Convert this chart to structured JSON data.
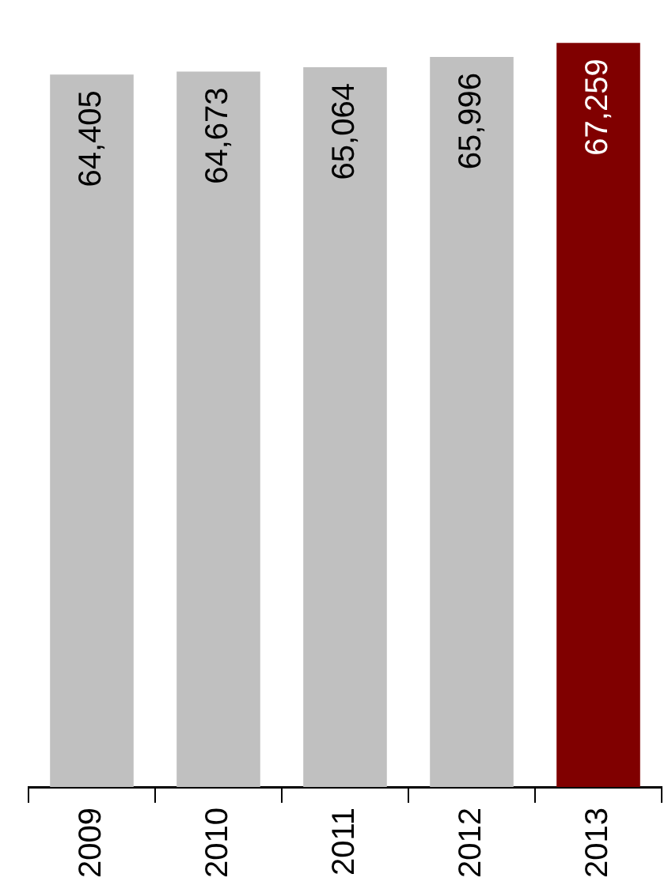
{
  "chart_data": {
    "type": "bar",
    "categories": [
      "2009",
      "2010",
      "2011",
      "2012",
      "2013"
    ],
    "values": [
      64405,
      64673,
      65064,
      65996,
      67259
    ],
    "value_labels": [
      "64,405",
      "64,673",
      "65,064",
      "65,996",
      "67,259"
    ],
    "colors": [
      "#c0c0c0",
      "#c0c0c0",
      "#c0c0c0",
      "#c0c0c0",
      "#800000"
    ],
    "grid": false,
    "legend": false
  }
}
